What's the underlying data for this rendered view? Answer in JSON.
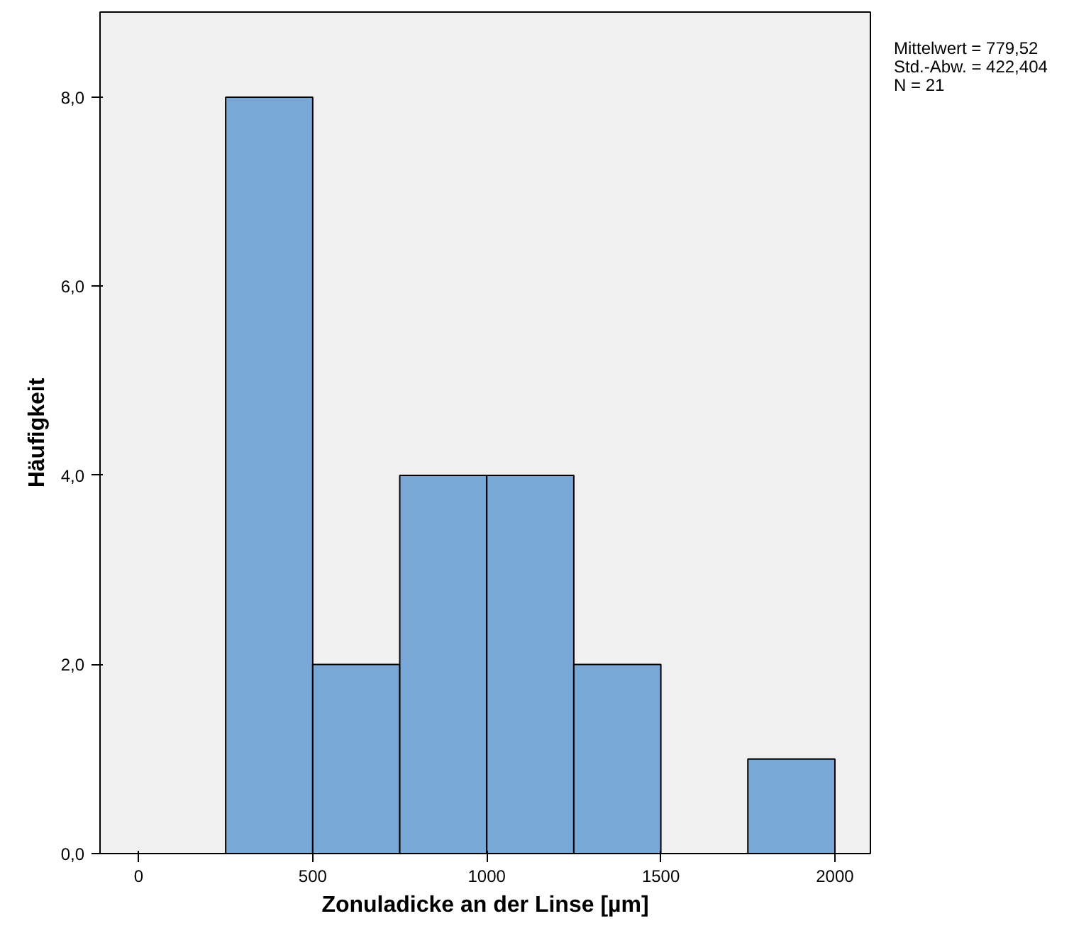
{
  "chart_data": {
    "type": "histogram",
    "xlabel": "Zonuladicke an der Linse [µm]",
    "ylabel": "Häufigkeit",
    "bins": [
      250,
      500,
      750,
      1000,
      1250,
      1500,
      1750,
      2000
    ],
    "values": [
      8,
      2,
      4,
      4,
      2,
      0,
      1
    ],
    "color": "#7aa8d6",
    "xlim": [
      -111,
      2102
    ],
    "ylim": [
      0,
      8.9
    ],
    "xticks": [
      0,
      500,
      1000,
      1500,
      2000
    ],
    "yticks": [
      {
        "value": 0,
        "label": "0,0"
      },
      {
        "value": 2,
        "label": "2,0"
      },
      {
        "value": 4,
        "label": "4,0"
      },
      {
        "value": 6,
        "label": "6,0"
      },
      {
        "value": 8,
        "label": "8,0"
      }
    ],
    "grid": false,
    "annotations": [
      "Mittelwert = 779,52",
      "Std.-Abw. = 422,404",
      "N = 21"
    ]
  }
}
